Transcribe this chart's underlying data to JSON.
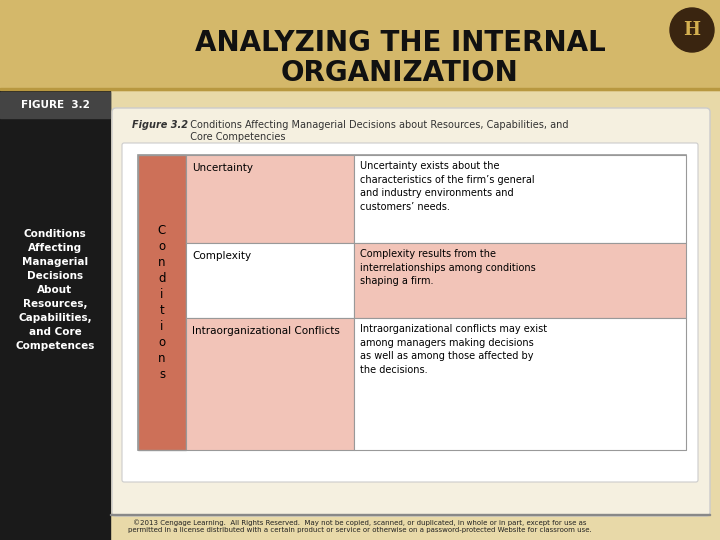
{
  "title_line1": "ANALYZING THE INTERNAL",
  "title_line2": "ORGANIZATION",
  "figure_label": "FIGURE  3.2",
  "left_sidebar_text": "Conditions\nAffecting\nManagerial\nDecisions\nAbout\nResources,\nCapabilities,\nand Core\nCompetences",
  "conditions_label": "C\no\nn\nd\ni\nt\ni\no\nn\ns",
  "rows": [
    {
      "label": "Uncertainty",
      "description": "Uncertainty exists about the\ncharacteristics of the firm’s general\nand industry environments and\ncustomers’ needs.",
      "bg_col1": "#cd7058",
      "bg_col2": "#f2c4b8",
      "bg_col3": "#ffffff"
    },
    {
      "label": "Complexity",
      "description": "Complexity results from the\ninterrelationships among conditions\nshaping a firm.",
      "bg_col1": "#cd7058",
      "bg_col2": "#ffffff",
      "bg_col3": "#f2c4b8"
    },
    {
      "label": "Intraorganizational Conflicts",
      "description": "Intraorganizational conflicts may exist\namong managers making decisions\nas well as among those affected by\nthe decisions.",
      "bg_col1": "#cd7058",
      "bg_col2": "#f2c4b8",
      "bg_col3": "#ffffff"
    }
  ],
  "bg_main": "#e8d9a8",
  "bg_main_lower": "#ddd09a",
  "bg_left_top": "#c8a030",
  "bg_left_dark": "#1a1a1a",
  "fig_label_bg": "#444444",
  "border_color": "#aaaaaa",
  "inner_panel_bg": "#f5f0e0",
  "table_border": "#999999",
  "copyright_text": "©2013 Cengage Learning.  All Rights Reserved.  May not be copied, scanned, or duplicated, in whole or in part, except for use as\npermitted in a license distributed with a certain product or service or otherwise on a password-protected Website for classroom use.",
  "logo_dark": "#3a2510",
  "logo_ring": "#c8a030",
  "title_color": "#111111"
}
